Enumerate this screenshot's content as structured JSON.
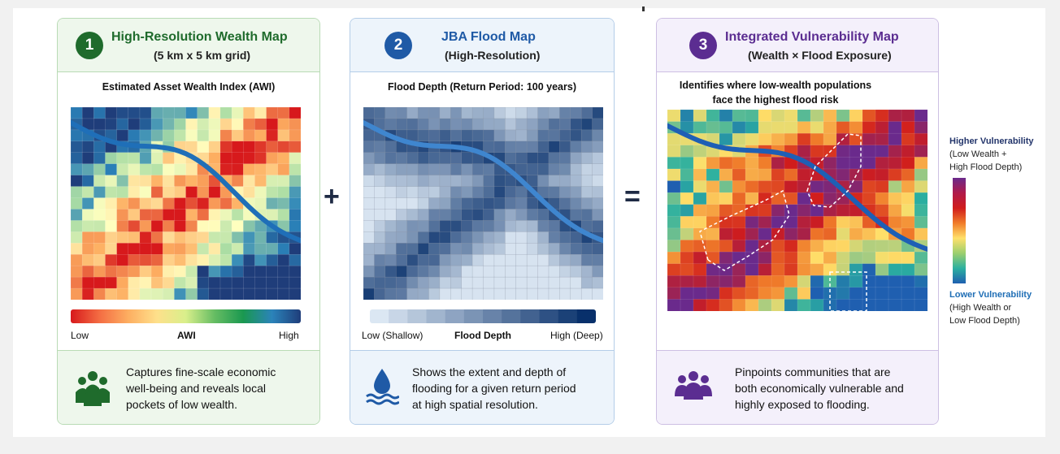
{
  "panels": [
    {
      "number": "1",
      "title": "High-Resolution Wealth Map",
      "subtitle": "(5 km x 5 km grid)",
      "caption": "Estimated Asset Wealth Index (AWI)",
      "legend": {
        "low": "Low",
        "mid": "AWI",
        "high": "High"
      },
      "description": [
        "Captures fine-scale economic",
        "well-being and reveals local",
        "pockets of low wealth."
      ],
      "icon": "people-group-icon",
      "accent": "#1f6b2c"
    },
    {
      "number": "2",
      "title": "JBA Flood Map",
      "subtitle": "(High-Resolution)",
      "caption": "Flood Depth (Return Period: 100 years)",
      "legend": {
        "low": "Low (Shallow)",
        "mid": "Flood Depth",
        "high": "High (Deep)"
      },
      "description": [
        "Shows the extent and depth of",
        "flooding for a given return period",
        "at high spatial resolution."
      ],
      "icon": "water-drop-icon",
      "accent": "#1f5aa6"
    },
    {
      "number": "3",
      "title": "Integrated Vulnerability Map",
      "subtitle": "(Wealth × Flood Exposure)",
      "caption": [
        "Identifies where low-wealth populations",
        "face the highest flood risk"
      ],
      "legend": {
        "high_title": "Higher Vulnerability",
        "high_detail": [
          "(Low Wealth +",
          "High Flood Depth)"
        ],
        "low_title": "Lower Vulnerability",
        "low_detail": [
          "(High Wealth or",
          "Low Flood Depth)"
        ]
      },
      "description": [
        "Pinpoints communities that are",
        "both economically vulnerable and",
        "highly exposed to flooding."
      ],
      "icon": "people-group-icon",
      "accent": "#5b2d91"
    }
  ],
  "operators": {
    "plus": "+",
    "equals": "="
  },
  "colors": {
    "high_color": "#23356b",
    "low_color": "#1f6eb5",
    "wealth_scale": [
      "#d7191c",
      "#fdae61",
      "#ffffbf",
      "#abdda4",
      "#2b83ba",
      "#1f3d7a"
    ],
    "flood_scale": [
      "#dbe7f3",
      "#08306b"
    ],
    "vulnerability_scale": [
      "#1f5fb0",
      "#2bb0a0",
      "#ffe06a",
      "#f07c2a",
      "#d01c1c",
      "#6a2a8c"
    ]
  }
}
